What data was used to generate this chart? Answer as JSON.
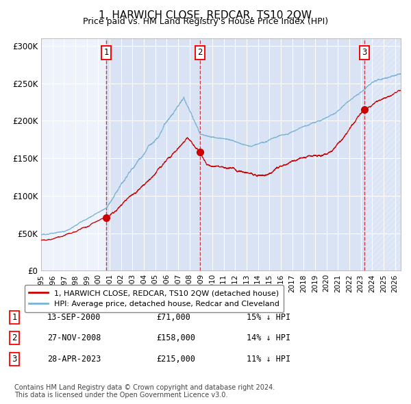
{
  "title": "1, HARWICH CLOSE, REDCAR, TS10 2QW",
  "subtitle": "Price paid vs. HM Land Registry's House Price Index (HPI)",
  "ylim": [
    0,
    310000
  ],
  "xlim_start": 1995.0,
  "xlim_end": 2026.5,
  "yticks": [
    0,
    50000,
    100000,
    150000,
    200000,
    250000,
    300000
  ],
  "ytick_labels": [
    "£0",
    "£50K",
    "£100K",
    "£150K",
    "£200K",
    "£250K",
    "£300K"
  ],
  "xtick_years": [
    1995,
    1996,
    1997,
    1998,
    1999,
    2000,
    2001,
    2002,
    2003,
    2004,
    2005,
    2006,
    2007,
    2008,
    2009,
    2010,
    2011,
    2012,
    2013,
    2014,
    2015,
    2016,
    2017,
    2018,
    2019,
    2020,
    2021,
    2022,
    2023,
    2024,
    2025,
    2026
  ],
  "sale_dates": [
    2000.706,
    2008.906,
    2023.32
  ],
  "sale_prices": [
    71000,
    158000,
    215000
  ],
  "sale_labels": [
    "1",
    "2",
    "3"
  ],
  "sale_date_strings": [
    "13-SEP-2000",
    "27-NOV-2008",
    "28-APR-2023"
  ],
  "sale_price_strings": [
    "£71,000",
    "£158,000",
    "£215,000"
  ],
  "sale_hpi_strings": [
    "15% ↓ HPI",
    "14% ↓ HPI",
    "11% ↓ HPI"
  ],
  "hpi_color": "#7ab3d4",
  "price_color": "#cc0000",
  "background_color": "#eef2fb",
  "grid_color": "#ffffff",
  "legend_label_price": "1, HARWICH CLOSE, REDCAR, TS10 2QW (detached house)",
  "legend_label_hpi": "HPI: Average price, detached house, Redcar and Cleveland",
  "footer_text": "Contains HM Land Registry data © Crown copyright and database right 2024.\nThis data is licensed under the Open Government Licence v3.0."
}
